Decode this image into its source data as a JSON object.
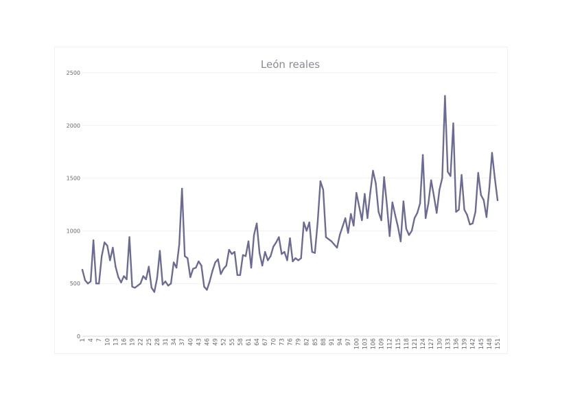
{
  "chart_data": {
    "type": "line",
    "title": "León reales",
    "xlabel": "",
    "ylabel": "",
    "ylim": [
      0,
      2500
    ],
    "yticks": [
      0,
      500,
      1000,
      1500,
      2000,
      2500
    ],
    "grid": true,
    "legend": "none",
    "x_start": 1,
    "x_tick_labels": [
      "1",
      "4",
      "7",
      "10",
      "13",
      "16",
      "19",
      "22",
      "25",
      "28",
      "31",
      "34",
      "37",
      "40",
      "43",
      "46",
      "49",
      "52",
      "55",
      "58",
      "61",
      "64",
      "67",
      "70",
      "73",
      "76",
      "79",
      "82",
      "85",
      "88",
      "91",
      "94",
      "97",
      "100",
      "103",
      "106",
      "109",
      "112",
      "115",
      "118",
      "121",
      "124",
      "127",
      "130",
      "133",
      "136",
      "139",
      "142",
      "145",
      "148",
      "151"
    ],
    "series": [
      {
        "color": "#6b6b94",
        "values": [
          630,
          530,
          500,
          520,
          910,
          500,
          500,
          760,
          890,
          860,
          720,
          840,
          660,
          560,
          510,
          570,
          540,
          940,
          470,
          460,
          480,
          500,
          570,
          540,
          660,
          460,
          420,
          550,
          810,
          490,
          520,
          480,
          500,
          700,
          650,
          870,
          1400,
          760,
          740,
          560,
          640,
          650,
          710,
          670,
          470,
          440,
          520,
          620,
          700,
          730,
          590,
          640,
          670,
          820,
          780,
          800,
          580,
          580,
          770,
          760,
          900,
          650,
          960,
          1070,
          790,
          670,
          800,
          720,
          760,
          850,
          890,
          940,
          780,
          800,
          720,
          930,
          710,
          740,
          720,
          740,
          1080,
          1000,
          1080,
          800,
          790,
          1080,
          1470,
          1390,
          940,
          920,
          900,
          870,
          840,
          960,
          1040,
          1120,
          980,
          1160,
          1050,
          1360,
          1230,
          1100,
          1350,
          1120,
          1360,
          1570,
          1450,
          1180,
          1100,
          1510,
          1250,
          950,
          1270,
          1150,
          1040,
          900,
          1280,
          1020,
          960,
          1000,
          1120,
          1170,
          1260,
          1720,
          1120,
          1260,
          1480,
          1330,
          1170,
          1390,
          1500,
          2280,
          1560,
          1520,
          2020,
          1180,
          1200,
          1530,
          1200,
          1150,
          1060,
          1070,
          1180,
          1550,
          1340,
          1290,
          1130,
          1400,
          1740,
          1500,
          1290
        ]
      }
    ]
  }
}
